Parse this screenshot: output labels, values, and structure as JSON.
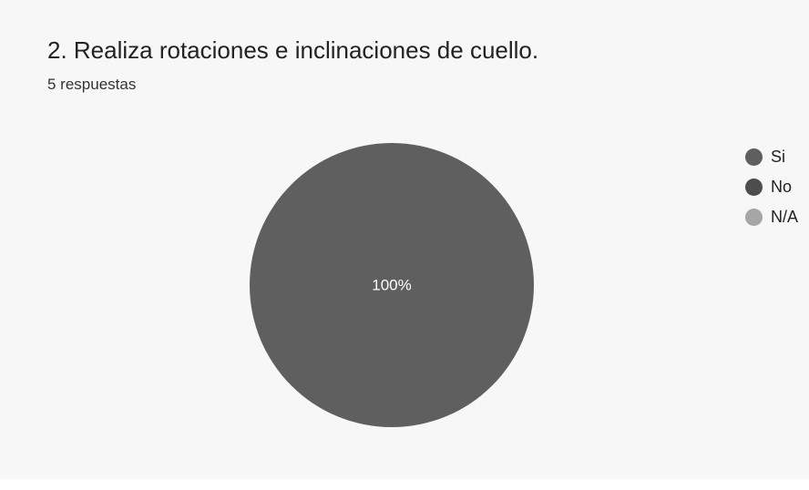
{
  "title": "2. Realiza rotaciones e inclinaciones de cuello.",
  "subtitle": "5 respuestas",
  "chart_data": {
    "type": "pie",
    "categories": [
      "Si",
      "No",
      "N/A"
    ],
    "values": [
      100,
      0,
      0
    ],
    "unit": "%",
    "slice_labels": [
      "100%",
      "",
      ""
    ],
    "colors": [
      "#5f5f5f",
      "#4d4d4d",
      "#a6a6a6"
    ],
    "legend": {
      "placement": "right",
      "entries": [
        "Si",
        "No",
        "N/A"
      ]
    }
  }
}
